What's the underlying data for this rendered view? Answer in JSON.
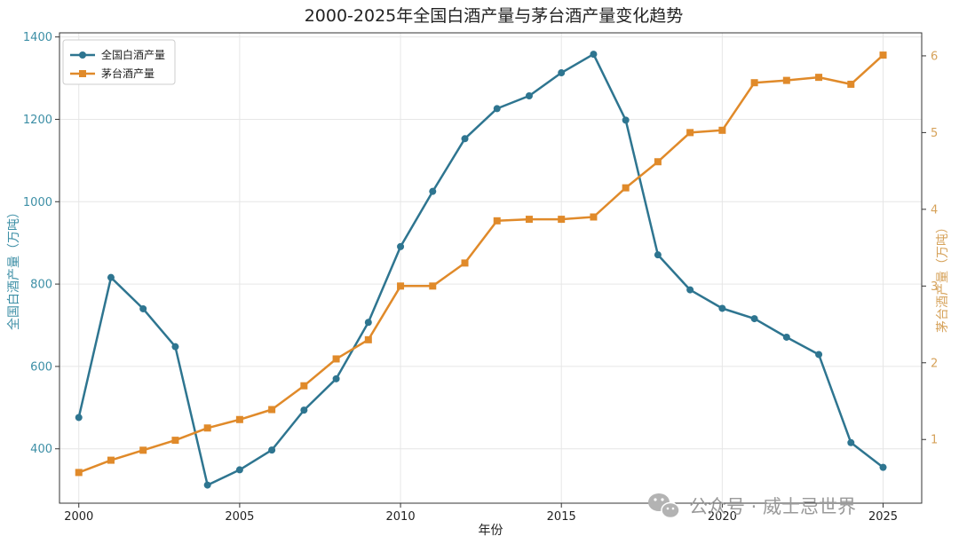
{
  "chart_data": {
    "type": "line",
    "title": "2000-2025年全国白酒产量与茅台酒产量变化趋势",
    "xlabel": "年份",
    "ylabel_left": "全国白酒产量（万吨）",
    "ylabel_right": "茅台酒产量（万吨）",
    "x": [
      2000,
      2001,
      2002,
      2003,
      2004,
      2005,
      2006,
      2007,
      2008,
      2009,
      2010,
      2011,
      2012,
      2013,
      2014,
      2015,
      2016,
      2017,
      2018,
      2019,
      2020,
      2021,
      2022,
      2023,
      2024,
      2025
    ],
    "x_ticks": [
      "2000",
      "2005",
      "2010",
      "2015",
      "2020",
      "2025"
    ],
    "xlim": [
      1999.4,
      2026.2
    ],
    "ylim_left": [
      268,
      1410
    ],
    "ylim_right": [
      0.17,
      6.3
    ],
    "y_ticks_left": [
      "400",
      "600",
      "800",
      "1000",
      "1200",
      "1400"
    ],
    "y_ticks_right": [
      "1",
      "2",
      "3",
      "4",
      "5",
      "6"
    ],
    "grid": true,
    "legend_position": "top-left",
    "series": [
      {
        "name": "全国白酒产量",
        "axis": "left",
        "color": "#2e7590",
        "marker": "circle",
        "values": [
          476,
          816,
          740,
          648,
          312,
          349,
          397,
          494,
          570,
          707,
          891,
          1025,
          1153,
          1226,
          1257,
          1313,
          1358,
          1198,
          871,
          786,
          741,
          716,
          671,
          629,
          415,
          355
        ]
      },
      {
        "name": "茅台酒产量",
        "axis": "right",
        "color": "#e08a2a",
        "marker": "square",
        "values": [
          0.57,
          0.73,
          0.86,
          0.99,
          1.15,
          1.26,
          1.39,
          1.7,
          2.05,
          2.3,
          3.0,
          3.0,
          3.3,
          3.85,
          3.87,
          3.87,
          3.9,
          4.28,
          4.62,
          5.0,
          5.03,
          5.65,
          5.68,
          5.72,
          5.63,
          6.01
        ]
      }
    ]
  },
  "watermark": {
    "text": "公众号 · 威士忌世界",
    "icon": "wechat-icon"
  },
  "colors": {
    "left_axis": "#3d8fa6",
    "right_axis": "#d6a25a",
    "grid": "#e6e6e6",
    "frame": "#333333"
  }
}
